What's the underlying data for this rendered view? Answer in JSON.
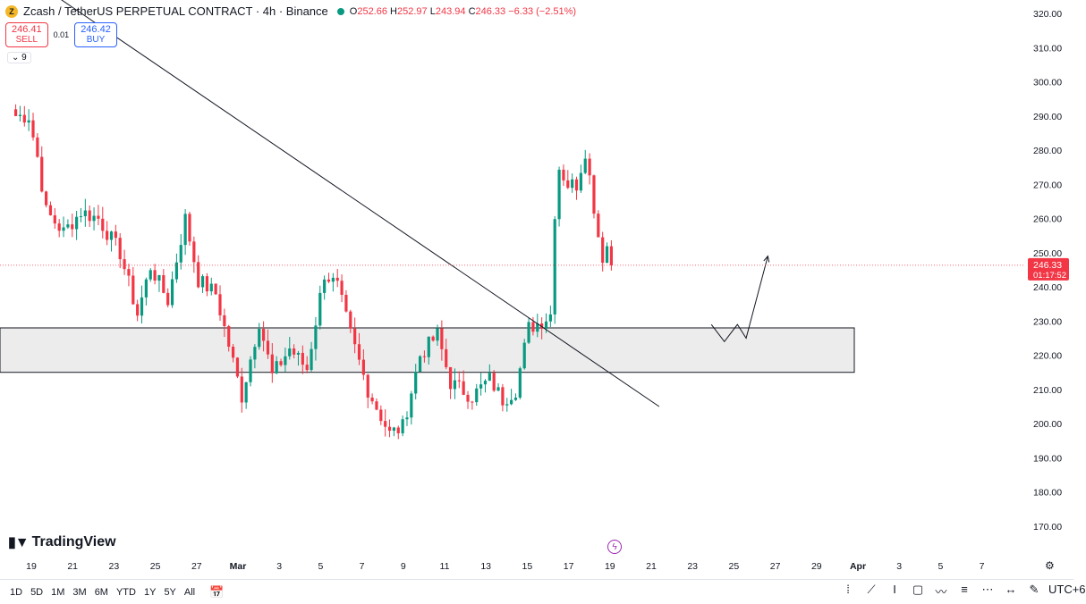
{
  "header": {
    "symbol_text": "Zcash / TetherUS PERPETUAL CONTRACT · 4h · Binance",
    "coin_icon": "zcash-coin-icon",
    "open_label": "O",
    "open": "252.66",
    "high_label": "H",
    "high": "252.97",
    "low_label": "L",
    "low": "243.94",
    "close_label": "C",
    "close": "246.33",
    "change": "−6.33 (−2.51%)"
  },
  "trade": {
    "sell_price": "246.41",
    "sell_label": "SELL",
    "spread": "0.01",
    "buy_price": "246.42",
    "buy_label": "BUY"
  },
  "indicator": {
    "label": "9",
    "icon": "chevron-down-icon"
  },
  "brand": {
    "name": "TradingView"
  },
  "price_tag": {
    "price": "246.33",
    "countdown": "01:17:52"
  },
  "timeframes": [
    "1D",
    "5D",
    "1M",
    "3M",
    "6M",
    "YTD",
    "1Y",
    "5Y",
    "All"
  ],
  "bottom": {
    "timezone": "UTC+6",
    "tools": [
      "dots-icon",
      "trendline-icon",
      "text-cursor-icon",
      "rectangle-icon",
      "path-icon",
      "fib-icon",
      "pattern-icon",
      "measure-icon",
      "brush-icon"
    ]
  },
  "colors": {
    "up": "#089981",
    "down": "#f23645",
    "zone_fill": "#ececec",
    "line": "#131722"
  },
  "chart_data": {
    "type": "candlestick",
    "y_ticks": [
      "320.00",
      "310.00",
      "300.00",
      "290.00",
      "280.00",
      "270.00",
      "260.00",
      "250.00",
      "240.00",
      "230.00",
      "220.00",
      "210.00",
      "200.00",
      "190.00",
      "180.00",
      "170.00"
    ],
    "ylim": [
      165,
      322
    ],
    "x_ticks": [
      "19",
      "21",
      "23",
      "25",
      "27",
      "Mar",
      "3",
      "5",
      "7",
      "9",
      "11",
      "13",
      "15",
      "17",
      "19",
      "21",
      "23",
      "25",
      "27",
      "29",
      "Apr",
      "3",
      "5",
      "7"
    ],
    "anchors": [
      {
        "c": 3,
        "p": 290
      },
      {
        "c": 6,
        "p": 290
      },
      {
        "c": 8,
        "p": 278
      },
      {
        "c": 10,
        "p": 262
      },
      {
        "c": 14,
        "p": 256
      },
      {
        "c": 18,
        "p": 262
      },
      {
        "c": 22,
        "p": 260
      },
      {
        "c": 27,
        "p": 250
      },
      {
        "c": 31,
        "p": 232
      },
      {
        "c": 34,
        "p": 246
      },
      {
        "c": 38,
        "p": 236
      },
      {
        "c": 42,
        "p": 260
      },
      {
        "c": 45,
        "p": 242
      },
      {
        "c": 49,
        "p": 238
      },
      {
        "c": 53,
        "p": 218
      },
      {
        "c": 55,
        "p": 208
      },
      {
        "c": 59,
        "p": 230
      },
      {
        "c": 62,
        "p": 214
      },
      {
        "c": 66,
        "p": 222
      },
      {
        "c": 70,
        "p": 216
      },
      {
        "c": 74,
        "p": 244
      },
      {
        "c": 77,
        "p": 240
      },
      {
        "c": 80,
        "p": 226
      },
      {
        "c": 84,
        "p": 210
      },
      {
        "c": 89,
        "p": 197
      },
      {
        "c": 92,
        "p": 199
      },
      {
        "c": 96,
        "p": 220
      },
      {
        "c": 100,
        "p": 226
      },
      {
        "c": 103,
        "p": 212
      },
      {
        "c": 108,
        "p": 208
      },
      {
        "c": 112,
        "p": 213
      },
      {
        "c": 115,
        "p": 207
      },
      {
        "c": 118,
        "p": 210
      },
      {
        "c": 121,
        "p": 228
      },
      {
        "c": 124,
        "p": 230
      },
      {
        "c": 126,
        "p": 232
      },
      {
        "c": 127,
        "p": 262
      },
      {
        "c": 128,
        "p": 275
      },
      {
        "c": 130,
        "p": 270
      },
      {
        "c": 132,
        "p": 270
      },
      {
        "c": 134,
        "p": 280
      },
      {
        "c": 135,
        "p": 272
      },
      {
        "c": 137,
        "p": 255
      },
      {
        "c": 138,
        "p": 249
      },
      {
        "c": 139,
        "p": 252
      },
      {
        "c": 140,
        "p": 246.33
      }
    ],
    "zone": {
      "low": 215,
      "high": 228
    },
    "trendline": [
      {
        "c": -5,
        "p": 340
      },
      {
        "c": 151,
        "p": 205
      }
    ],
    "projection": [
      {
        "c": 163,
        "p": 229
      },
      {
        "c": 166,
        "p": 224
      },
      {
        "c": 169,
        "p": 229
      },
      {
        "c": 171,
        "p": 225
      },
      {
        "c": 176,
        "p": 249
      }
    ],
    "current_price": 246.33
  }
}
